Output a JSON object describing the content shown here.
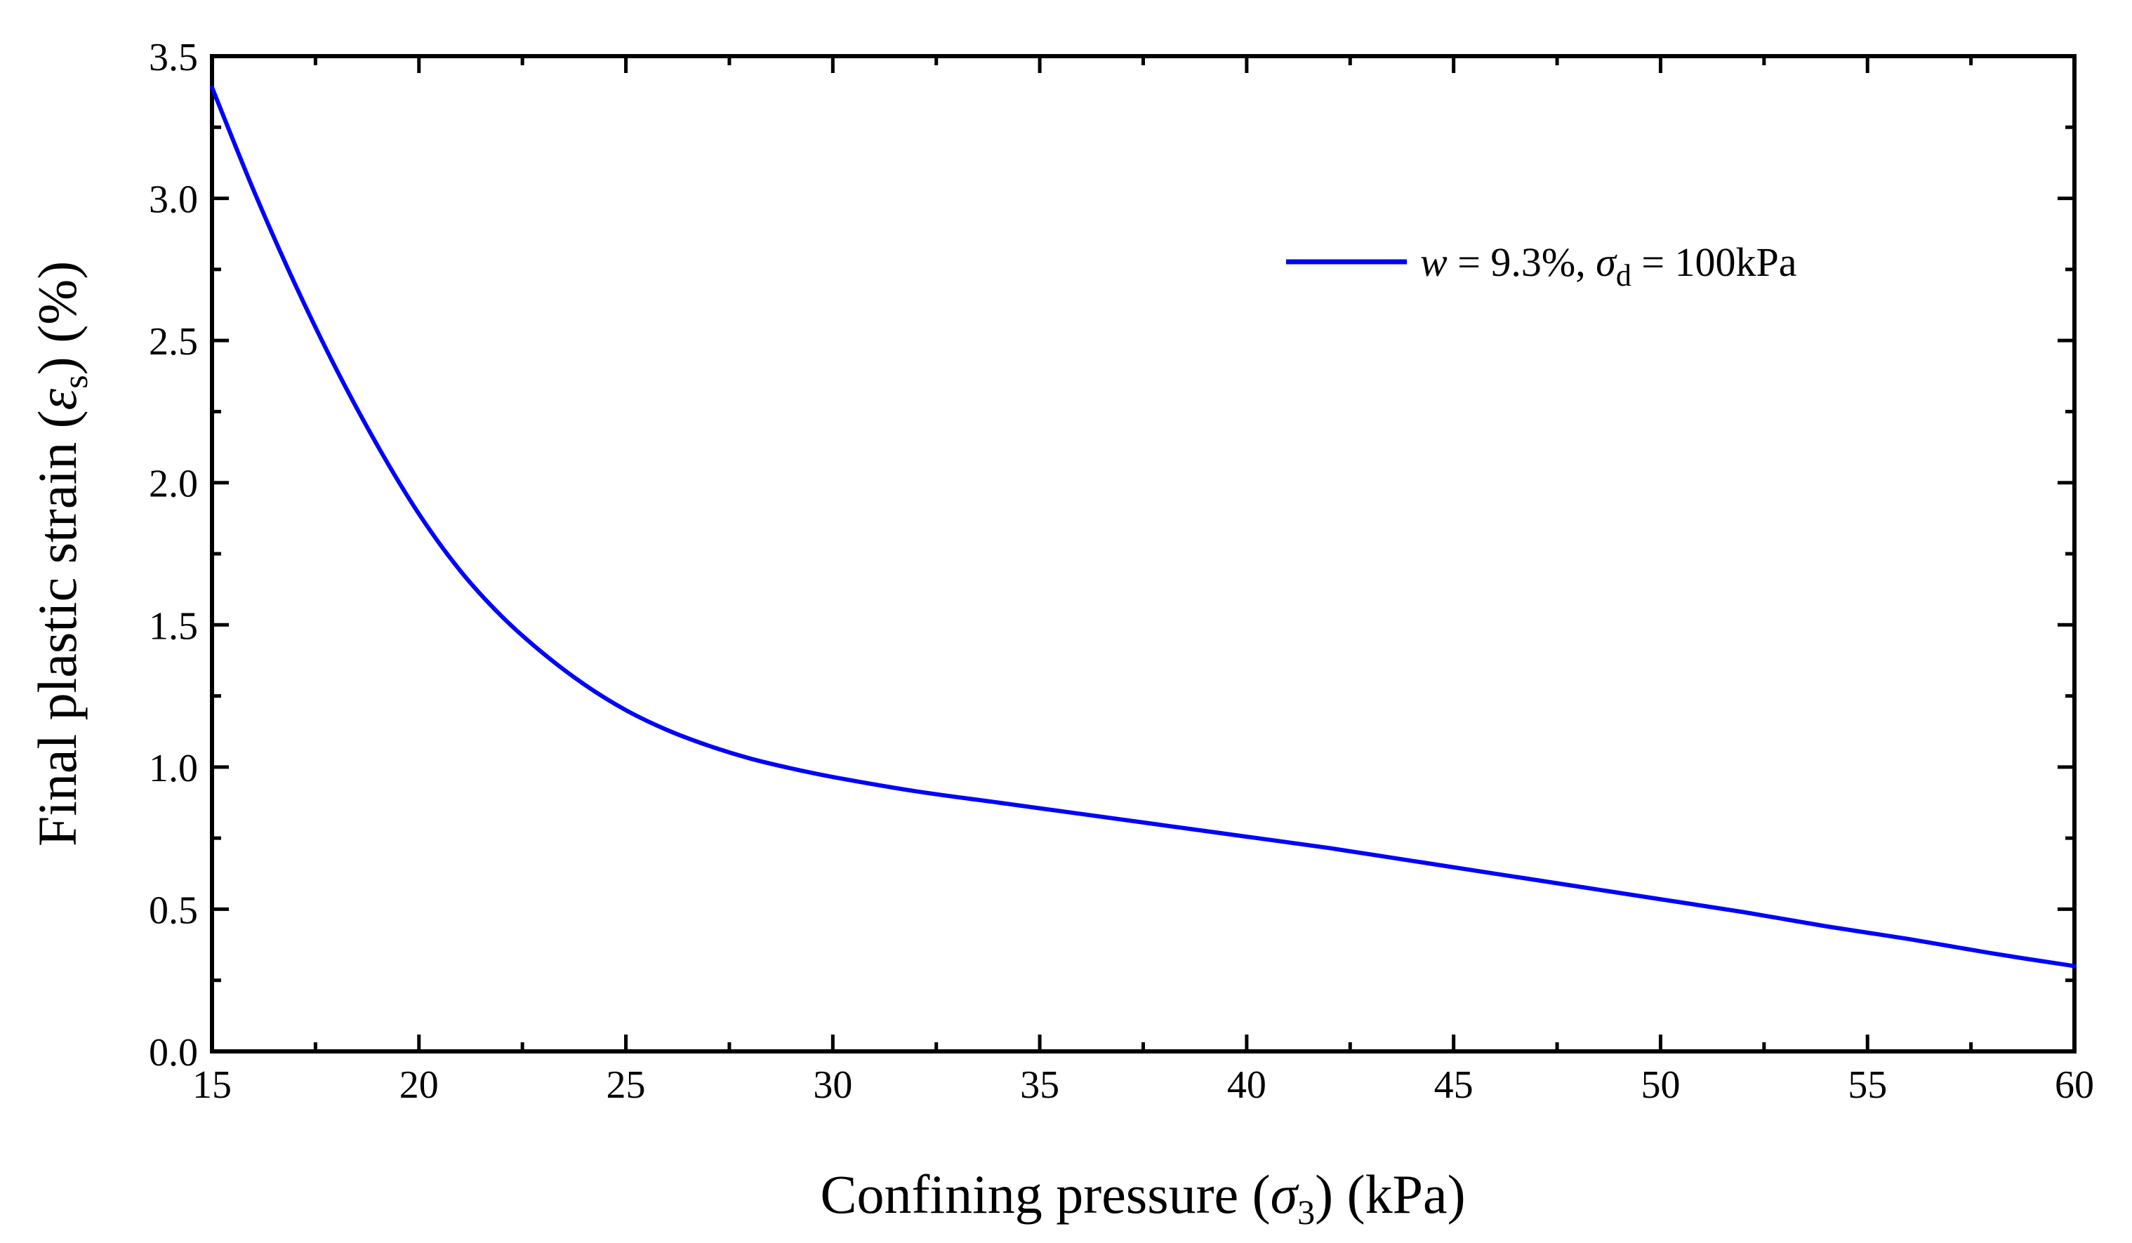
{
  "chart_data": {
    "type": "line",
    "title": "",
    "xlabel": {
      "prefix": "Confining pressure (",
      "symbol": "σ",
      "subscript": "3",
      "suffix": ") (kPa)"
    },
    "ylabel": {
      "prefix": "Final plastic strain (",
      "symbol": "ε",
      "subscript": "s",
      "suffix": ") (%)"
    },
    "xlim": [
      15,
      60
    ],
    "ylim": [
      0.0,
      3.5
    ],
    "xticks": [
      "15",
      "20",
      "25",
      "30",
      "35",
      "40",
      "45",
      "50",
      "55",
      "60"
    ],
    "yticks": [
      "0.0",
      "0.5",
      "1.0",
      "1.5",
      "2.0",
      "2.5",
      "3.0",
      "3.5"
    ],
    "grid": false,
    "legend_position": "upper-right",
    "series": [
      {
        "name": "w = 9.3%, σd = 100kPa",
        "legend": {
          "var": "w",
          "eq1": " = 9.3%, ",
          "sigma": "σ",
          "sub": "d",
          "eq2": " = 100kPa"
        },
        "color": "#0000ff",
        "x": [
          15,
          16,
          17,
          18,
          19,
          20,
          21,
          22,
          23,
          24,
          25,
          26,
          27,
          28,
          29,
          30,
          32,
          34,
          36,
          38,
          40,
          42,
          44,
          46,
          48,
          50,
          52,
          54,
          56,
          58,
          60
        ],
        "y": [
          3.39,
          3.03,
          2.7,
          2.4,
          2.13,
          1.89,
          1.69,
          1.53,
          1.4,
          1.29,
          1.2,
          1.13,
          1.075,
          1.03,
          0.995,
          0.965,
          0.915,
          0.875,
          0.835,
          0.795,
          0.755,
          0.715,
          0.67,
          0.625,
          0.58,
          0.535,
          0.49,
          0.44,
          0.395,
          0.345,
          0.3
        ]
      }
    ]
  }
}
